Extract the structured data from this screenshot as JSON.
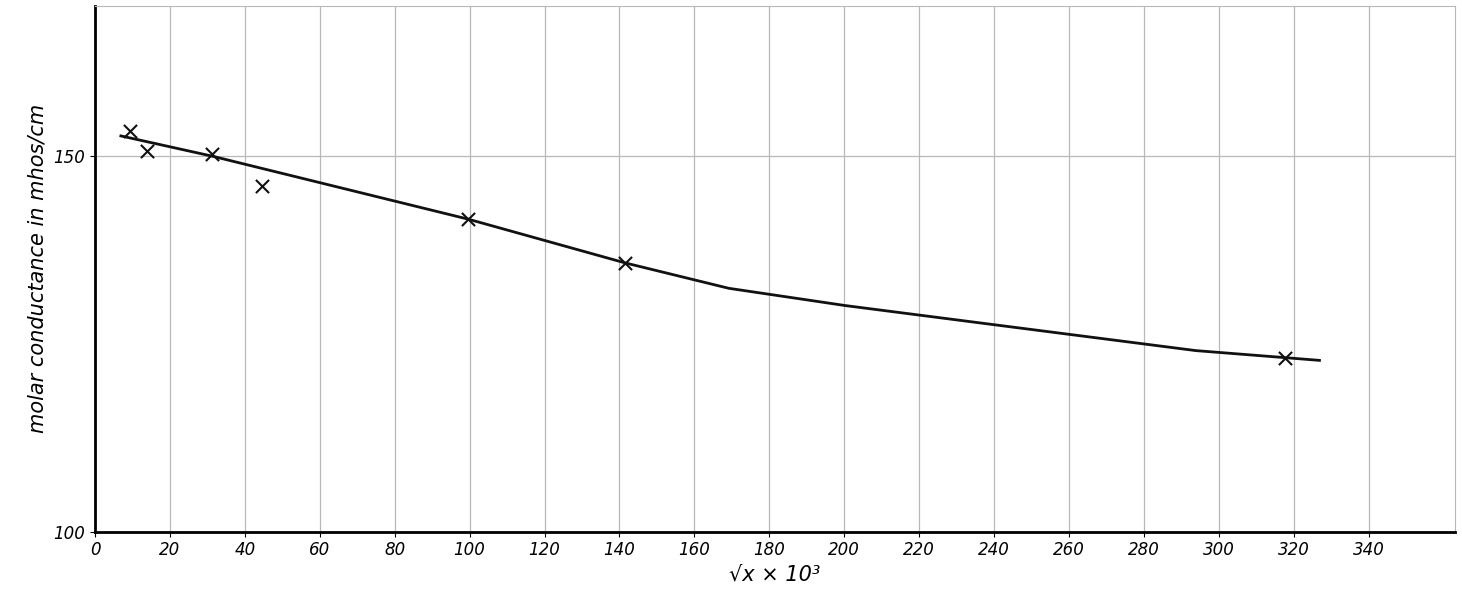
{
  "chart_data": {
    "type": "scatter",
    "x_label": "√x × 10³",
    "y_label": "molar conductance in mhos/cm",
    "x": [
      9.3,
      14.0,
      31.3,
      44.6,
      99.7,
      141.4,
      317.8
    ],
    "values": [
      153.3,
      150.7,
      150.3,
      146.0,
      141.6,
      135.8,
      123.1
    ],
    "marker": "x",
    "color": "#111111",
    "curve_x": [
      6.9,
      31.3,
      99.7,
      141.4,
      169.2,
      200.3,
      240.8,
      293.9,
      326.9
    ],
    "curve_values": [
      152.7,
      150.0,
      141.6,
      135.8,
      132.4,
      130.1,
      127.5,
      124.1,
      122.8
    ],
    "xlim": [
      0,
      363
    ],
    "ylim": [
      100,
      170
    ],
    "xticks": [
      0,
      20,
      40,
      60,
      80,
      100,
      120,
      140,
      160,
      180,
      200,
      220,
      240,
      260,
      280,
      300,
      320,
      340
    ],
    "yticks": [
      100,
      150
    ],
    "grid": true
  }
}
